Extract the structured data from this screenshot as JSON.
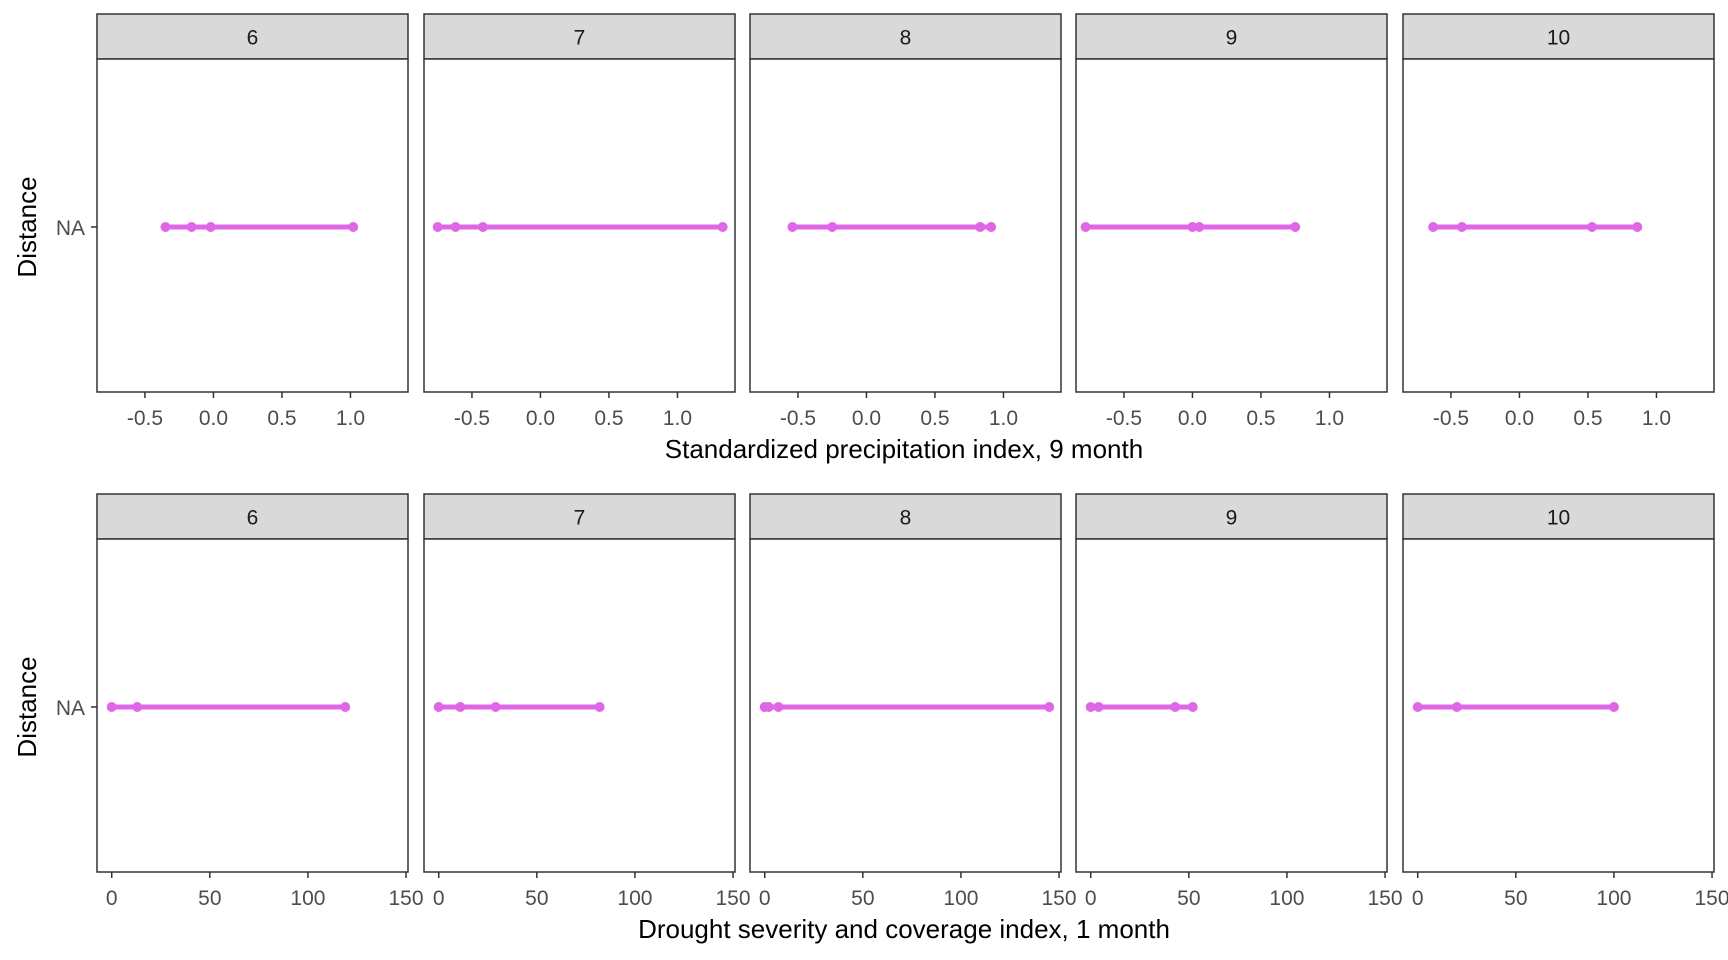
{
  "chart_data": [
    {
      "type": "line",
      "xlabel": "Standardized precipitation index, 9 month",
      "ylabel": "Distance",
      "y_categories": [
        "NA"
      ],
      "xlim": [
        -0.85,
        1.42
      ],
      "x_ticks": [
        -0.5,
        0.0,
        0.5,
        1.0
      ],
      "x_tick_labels": [
        "-0.5",
        "0.0",
        "0.5",
        "1.0"
      ],
      "color": "#E066E8",
      "grid": false,
      "panels": [
        {
          "label": "6",
          "category": "NA",
          "x": [
            -0.35,
            -0.16,
            -0.02,
            1.02
          ]
        },
        {
          "label": "7",
          "category": "NA",
          "x": [
            -0.75,
            -0.62,
            -0.42,
            1.33
          ]
        },
        {
          "label": "8",
          "category": "NA",
          "x": [
            -0.54,
            -0.25,
            0.83,
            0.91
          ]
        },
        {
          "label": "9",
          "category": "NA",
          "x": [
            -0.78,
            0.0,
            0.05,
            0.75
          ]
        },
        {
          "label": "10",
          "category": "NA",
          "x": [
            -0.63,
            -0.42,
            0.53,
            0.86
          ]
        }
      ]
    },
    {
      "type": "line",
      "xlabel": "Drought severity and coverage index, 1 month",
      "ylabel": "Distance",
      "y_categories": [
        "NA"
      ],
      "xlim": [
        -7.5,
        151
      ],
      "x_ticks": [
        0,
        50,
        100,
        150
      ],
      "x_tick_labels": [
        "0",
        "50",
        "100",
        "150"
      ],
      "color": "#E066E8",
      "grid": false,
      "panels": [
        {
          "label": "6",
          "category": "NA",
          "x": [
            0,
            13,
            119
          ]
        },
        {
          "label": "7",
          "category": "NA",
          "x": [
            0,
            11,
            29,
            82
          ]
        },
        {
          "label": "8",
          "category": "NA",
          "x": [
            0,
            2,
            7,
            145
          ]
        },
        {
          "label": "9",
          "category": "NA",
          "x": [
            0,
            4,
            43,
            52
          ]
        },
        {
          "label": "10",
          "category": "NA",
          "x": [
            0,
            20,
            100
          ]
        }
      ]
    }
  ]
}
